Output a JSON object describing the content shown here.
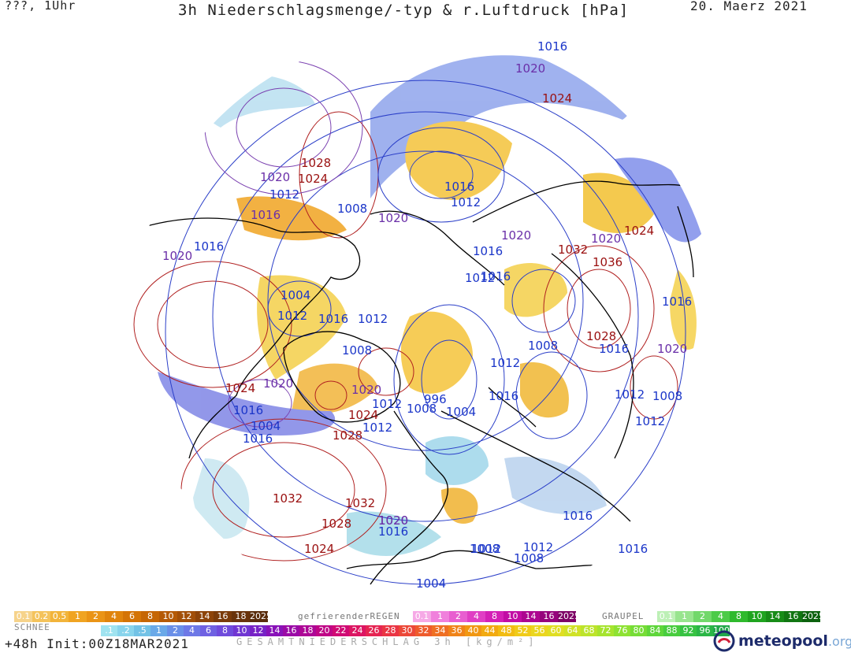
{
  "header": {
    "top_left": "???, 1Uhr",
    "title": "3h Niederschlagsmenge/-typ & r.Luftdruck [hPa]",
    "date": "20. Maerz 2021"
  },
  "footer": {
    "run_info": "+48h  Init:00Z18MAR2021",
    "total_caption": "GESAMTNIEDERSCHLAG 3h [kg/m²]",
    "logo": "meteopool",
    "logo_tld": ".org"
  },
  "legends": {
    "snow": {
      "label": "SCHNEE",
      "values": [
        "0.1",
        "0.2",
        "0.5",
        "1",
        "2",
        "4",
        "6",
        "8",
        "10",
        "12",
        "14",
        "16",
        "18",
        "2025+"
      ],
      "colors": [
        "#f6d38b",
        "#f4c35c",
        "#f2b43a",
        "#f0a422",
        "#ea9416",
        "#e0840c",
        "#d47406",
        "#c66604",
        "#b55a06",
        "#a24f08",
        "#8d4409",
        "#7a3b0a",
        "#69330b",
        "#592c0b"
      ]
    },
    "freezing_rain": {
      "label": "gefrierenderREGEN",
      "values": [
        "0.1",
        "1",
        "2",
        "4",
        "8",
        "10",
        "14",
        "16",
        "2025+"
      ],
      "colors": [
        "#f6a9e6",
        "#f080dc",
        "#e85ed0",
        "#e03ec4",
        "#d420b6",
        "#c20ca4",
        "#ad0690",
        "#96047c",
        "#7e0266"
      ]
    },
    "graupel": {
      "label": "GRAUPEL",
      "values": [
        "0.1",
        "1",
        "2",
        "4",
        "8",
        "10",
        "14",
        "16",
        "2025+"
      ],
      "colors": [
        "#bdf0b6",
        "#98e48e",
        "#72d86a",
        "#4ccb48",
        "#2fba2d",
        "#1fa41f",
        "#178c17",
        "#117612",
        "#0c610e"
      ]
    },
    "total": {
      "values": [
        ".1",
        ".2",
        ".5",
        "1",
        "2",
        "4",
        "6",
        "8",
        "10",
        "12",
        "14",
        "16",
        "18",
        "20",
        "22",
        "24",
        "26",
        "28",
        "30",
        "32",
        "34",
        "36",
        "40",
        "44",
        "48",
        "52",
        "56",
        "60",
        "64",
        "68",
        "72",
        "76",
        "80",
        "84",
        "88",
        "92",
        "96",
        "100"
      ],
      "colors": [
        "#9fe3f0",
        "#88d4ec",
        "#72c2e6",
        "#6aa9e8",
        "#6a8fe8",
        "#6d78e6",
        "#6f61e2",
        "#6f4bdc",
        "#7036d2",
        "#7722c6",
        "#8812b8",
        "#9a0aa6",
        "#ad0796",
        "#bf0686",
        "#d00a74",
        "#dc1562",
        "#e52452",
        "#ea3544",
        "#ec4838",
        "#ee5b2c",
        "#ef6f22",
        "#f08318",
        "#f19712",
        "#f2aa10",
        "#f2bc12",
        "#f0cb18",
        "#ead61e",
        "#e0de22",
        "#d0e226",
        "#bce42a",
        "#a6e42e",
        "#8ee232",
        "#76dd36",
        "#5ed63a",
        "#48cd3e",
        "#36c242",
        "#2ab646",
        "#22a84a"
      ]
    }
  },
  "isobar_labels": [
    {
      "text": "1016",
      "cls": "low"
    },
    {
      "text": "1020",
      "cls": "mid"
    },
    {
      "text": "1024",
      "cls": "high"
    },
    {
      "text": "1028",
      "cls": "high"
    },
    {
      "text": "1024",
      "cls": "high"
    },
    {
      "text": "1020",
      "cls": "mid"
    },
    {
      "text": "1012",
      "cls": "low"
    },
    {
      "text": "1016",
      "cls": "mid"
    },
    {
      "text": "1008",
      "cls": "low"
    },
    {
      "text": "1020",
      "cls": "mid"
    },
    {
      "text": "1012",
      "cls": "low"
    },
    {
      "text": "1016",
      "cls": "low"
    },
    {
      "text": "1020",
      "cls": "mid"
    },
    {
      "text": "1016",
      "cls": "low"
    },
    {
      "text": "1012",
      "cls": "low"
    },
    {
      "text": "1016",
      "cls": "low"
    },
    {
      "text": "1032",
      "cls": "high"
    },
    {
      "text": "1020",
      "cls": "mid"
    },
    {
      "text": "1024",
      "cls": "high"
    },
    {
      "text": "1036",
      "cls": "high"
    },
    {
      "text": "1004",
      "cls": "low"
    },
    {
      "text": "1016",
      "cls": "low"
    },
    {
      "text": "1012",
      "cls": "low"
    },
    {
      "text": "1016",
      "cls": "low"
    },
    {
      "text": "1012",
      "cls": "low"
    },
    {
      "text": "1020",
      "cls": "mid"
    },
    {
      "text": "1016",
      "cls": "low"
    },
    {
      "text": "1008",
      "cls": "low"
    },
    {
      "text": "1028",
      "cls": "high"
    },
    {
      "text": "1016",
      "cls": "low"
    },
    {
      "text": "1008",
      "cls": "low"
    },
    {
      "text": "1020",
      "cls": "mid"
    },
    {
      "text": "1012",
      "cls": "low"
    },
    {
      "text": "1024",
      "cls": "high"
    },
    {
      "text": "1020",
      "cls": "mid"
    },
    {
      "text": "1016",
      "cls": "low"
    },
    {
      "text": "1020",
      "cls": "mid"
    },
    {
      "text": "996",
      "cls": "low"
    },
    {
      "text": "1004",
      "cls": "low"
    },
    {
      "text": "1012",
      "cls": "low"
    },
    {
      "text": "1008",
      "cls": "low"
    },
    {
      "text": "1012",
      "cls": "low"
    },
    {
      "text": "1016",
      "cls": "low"
    },
    {
      "text": "1012",
      "cls": "low"
    },
    {
      "text": "1008",
      "cls": "low"
    },
    {
      "text": "1012",
      "cls": "low"
    },
    {
      "text": "1024",
      "cls": "high"
    },
    {
      "text": "1016",
      "cls": "low"
    },
    {
      "text": "1004",
      "cls": "low"
    },
    {
      "text": "1028",
      "cls": "high"
    },
    {
      "text": "1020",
      "cls": "mid"
    },
    {
      "text": "1016",
      "cls": "low"
    },
    {
      "text": "1032",
      "cls": "high"
    },
    {
      "text": "1032",
      "cls": "high"
    },
    {
      "text": "1028",
      "cls": "high"
    },
    {
      "text": "1020",
      "cls": "mid"
    },
    {
      "text": "1016",
      "cls": "low"
    },
    {
      "text": "1024",
      "cls": "high"
    },
    {
      "text": "1008",
      "cls": "low"
    },
    {
      "text": "1012",
      "cls": "low"
    },
    {
      "text": "1008",
      "cls": "low"
    },
    {
      "text": "1016",
      "cls": "low"
    },
    {
      "text": "1012",
      "cls": "low"
    },
    {
      "text": "1004",
      "cls": "low"
    }
  ]
}
